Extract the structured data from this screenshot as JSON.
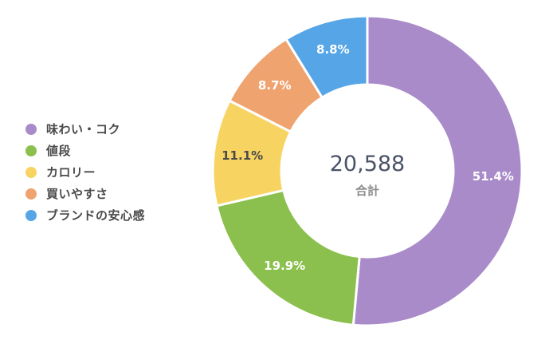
{
  "chart_data": {
    "type": "pie",
    "donut": true,
    "categories": [
      "味わい・コク",
      "値段",
      "カロリー",
      "買いやすさ",
      "ブランドの安心感"
    ],
    "values": [
      51.4,
      19.9,
      11.1,
      8.7,
      8.8
    ],
    "value_labels": [
      "51.4%",
      "19.9%",
      "11.1%",
      "8.7%",
      "8.8%"
    ],
    "colors": [
      "#a98bc9",
      "#8bc04e",
      "#f7d462",
      "#efa36f",
      "#56a5e6"
    ],
    "label_colors": [
      "#ffffff",
      "#ffffff",
      "#4a4a4a",
      "#ffffff",
      "#ffffff"
    ],
    "total": "20,588",
    "total_label": "合計",
    "legend_position": "left"
  }
}
